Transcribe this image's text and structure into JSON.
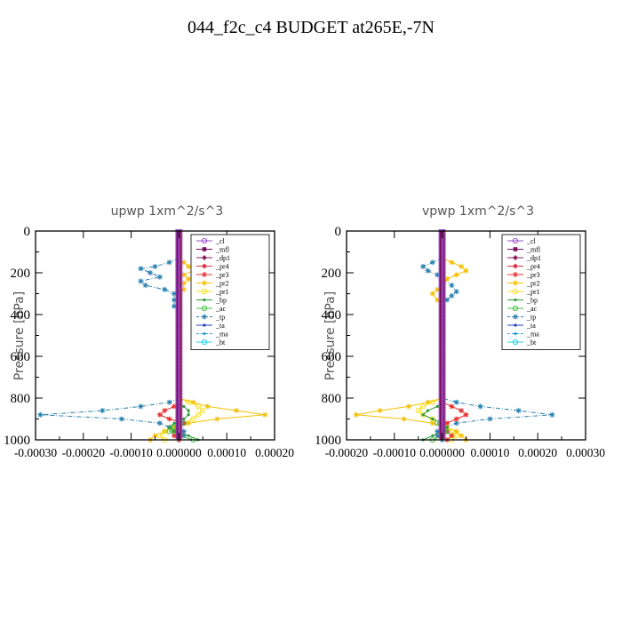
{
  "title": "044_f2c_c4  BUDGET at265E,-7N",
  "colors": {
    "cl": "#9b4fd0",
    "mfl": "#7a1060",
    "dp1": "#8a2060",
    "pr4": "#e03040",
    "pr3": "#e83030",
    "pr2": "#f5c000",
    "pr1": "#f8e020",
    "bp": "#2d9a3a",
    "ac": "#40c040",
    "tp": "#2a80b0",
    "ta": "#2040c0",
    "ma": "#30a0e0",
    "bt": "#20d0e0"
  },
  "chart_data": [
    {
      "type": "line",
      "title": "upwp   1xm^2/s^3",
      "ylabel": "Pressure [hPa]",
      "xlim": [
        -0.0003,
        0.0002
      ],
      "ylim": [
        1000,
        0
      ],
      "xticks": [
        "-0.00030",
        "-0.00020",
        "-0.00010",
        "0.000000",
        "0.00010",
        "0.00020"
      ],
      "yticks": [
        "0",
        "200",
        "400",
        "600",
        "800",
        "1000"
      ],
      "legend_position": "top-right",
      "legend": [
        "_cl",
        "_mfl",
        "_dp1",
        "_pr4",
        "_pr3",
        "_pr2",
        "_pr1",
        "_bp",
        "_ac",
        "_tp",
        "_ta",
        "_ma",
        "_bt"
      ],
      "series": [
        {
          "name": "_tp",
          "key": "tp",
          "p": [
            130,
            150,
            170,
            180,
            200,
            220,
            240,
            260,
            280,
            300,
            330,
            360,
            380,
            800,
            820,
            840,
            860,
            880,
            900,
            920,
            940,
            960,
            980,
            1000
          ],
          "v": [
            0,
            -2e-05,
            -5e-05,
            -8e-05,
            -6e-05,
            -4e-05,
            -8e-05,
            -7e-05,
            -3e-05,
            -1e-05,
            -1e-05,
            -1e-05,
            0,
            0,
            -2e-05,
            -8e-05,
            -0.00016,
            -0.00029,
            -0.00012,
            -4e-05,
            -2e-05,
            1e-05,
            1e-05,
            0
          ]
        },
        {
          "name": "_pr2",
          "key": "pr2",
          "p": [
            130,
            150,
            170,
            190,
            210,
            230,
            250,
            280,
            300,
            800,
            820,
            840,
            860,
            880,
            900,
            920,
            940,
            960,
            980,
            1000
          ],
          "v": [
            0,
            1e-05,
            2e-05,
            3e-05,
            1e-05,
            2e-05,
            1e-05,
            1e-05,
            0,
            0,
            3e-05,
            6e-05,
            0.00012,
            0.00018,
            8e-05,
            2e-05,
            -1e-05,
            -3e-05,
            -5e-05,
            -6e-05
          ]
        },
        {
          "name": "_pr1",
          "key": "pr1",
          "p": [
            800,
            820,
            840,
            860,
            880,
            900,
            920,
            940,
            960,
            980,
            1000
          ],
          "v": [
            0,
            2e-05,
            4e-05,
            5e-05,
            4e-05,
            3e-05,
            1e-05,
            -1e-05,
            -3e-05,
            -4e-05,
            -3e-05
          ]
        },
        {
          "name": "_pr3",
          "key": "pr3",
          "p": [
            820,
            840,
            860,
            880,
            900,
            920,
            940,
            960,
            980,
            1000
          ],
          "v": [
            0,
            -1e-05,
            -3e-05,
            -4e-05,
            -2e-05,
            1e-05,
            0,
            -1e-05,
            -1e-05,
            0
          ]
        },
        {
          "name": "_bp",
          "key": "bp",
          "p": [
            820,
            840,
            860,
            880,
            900,
            920,
            940,
            960,
            980,
            1000
          ],
          "v": [
            0,
            1e-05,
            2e-05,
            2e-05,
            1e-05,
            -1e-05,
            -2e-05,
            -1e-05,
            2e-05,
            4e-05
          ]
        },
        {
          "name": "_ac",
          "key": "ac",
          "p": [
            900,
            920,
            940,
            960,
            980,
            1000
          ],
          "v": [
            0,
            1e-05,
            -1e-05,
            -2e-05,
            0,
            3e-05
          ]
        }
      ]
    },
    {
      "type": "line",
      "title": "vpwp   1xm^2/s^3",
      "ylabel": "Pressure [hPa]",
      "xlim": [
        -0.0002,
        0.0003
      ],
      "ylim": [
        1000,
        0
      ],
      "xticks": [
        "-0.00020",
        "-0.00010",
        "0.000000",
        "0.00010",
        "0.00020",
        "0.00030"
      ],
      "yticks": [
        "0",
        "200",
        "400",
        "600",
        "800",
        "1000"
      ],
      "legend_position": "top-right",
      "legend": [
        "_cl",
        "_mfl",
        "_dp1",
        "_pr4",
        "_pr3",
        "_pr2",
        "_pr1",
        "_bp",
        "_ac",
        "_tp",
        "_ta",
        "_ma",
        "_bt"
      ],
      "series": [
        {
          "name": "_pr2",
          "key": "pr2",
          "p": [
            130,
            150,
            170,
            190,
            210,
            230,
            260,
            280,
            300,
            330,
            360,
            800,
            820,
            840,
            860,
            880,
            900,
            920,
            940,
            960,
            980,
            1000
          ],
          "v": [
            0,
            2e-05,
            4e-05,
            5e-05,
            3e-05,
            1e-05,
            0,
            -1e-05,
            -2e-05,
            -1e-05,
            0,
            0,
            -3e-05,
            -7e-05,
            -0.00013,
            -0.00018,
            -8e-05,
            -2e-05,
            1e-05,
            3e-05,
            4e-05,
            5e-05
          ]
        },
        {
          "name": "_tp",
          "key": "tp",
          "p": [
            130,
            150,
            170,
            190,
            210,
            230,
            260,
            290,
            310,
            330,
            350,
            800,
            820,
            840,
            860,
            880,
            900,
            920,
            940,
            960,
            980,
            1000
          ],
          "v": [
            0,
            -2e-05,
            -4e-05,
            -3e-05,
            -1e-05,
            0,
            2e-05,
            3e-05,
            2e-05,
            1e-05,
            0,
            0,
            3e-05,
            8e-05,
            0.00016,
            0.00023,
            0.0001,
            3e-05,
            1e-05,
            -1e-05,
            -1e-05,
            0
          ]
        },
        {
          "name": "_pr1",
          "key": "pr1",
          "p": [
            800,
            820,
            840,
            860,
            880,
            900,
            920,
            940,
            960,
            980,
            1000
          ],
          "v": [
            0,
            -2e-05,
            -4e-05,
            -5e-05,
            -4e-05,
            -2e-05,
            0,
            1e-05,
            2e-05,
            3e-05,
            2e-05
          ]
        },
        {
          "name": "_pr3",
          "key": "pr3",
          "p": [
            820,
            840,
            860,
            880,
            900,
            920,
            940,
            960,
            980,
            1000
          ],
          "v": [
            0,
            2e-05,
            4e-05,
            5e-05,
            3e-05,
            1e-05,
            0,
            1e-05,
            2e-05,
            1e-05
          ]
        },
        {
          "name": "_bp",
          "key": "bp",
          "p": [
            820,
            840,
            860,
            880,
            900,
            920,
            940,
            960,
            980,
            1000
          ],
          "v": [
            0,
            -1e-05,
            -3e-05,
            -4e-05,
            -2e-05,
            0,
            1e-05,
            0,
            -2e-05,
            -4e-05
          ]
        },
        {
          "name": "_ac",
          "key": "ac",
          "p": [
            900,
            920,
            940,
            960,
            980,
            1000
          ],
          "v": [
            0,
            -1e-05,
            0,
            1e-05,
            0,
            -2e-05
          ]
        }
      ]
    }
  ]
}
